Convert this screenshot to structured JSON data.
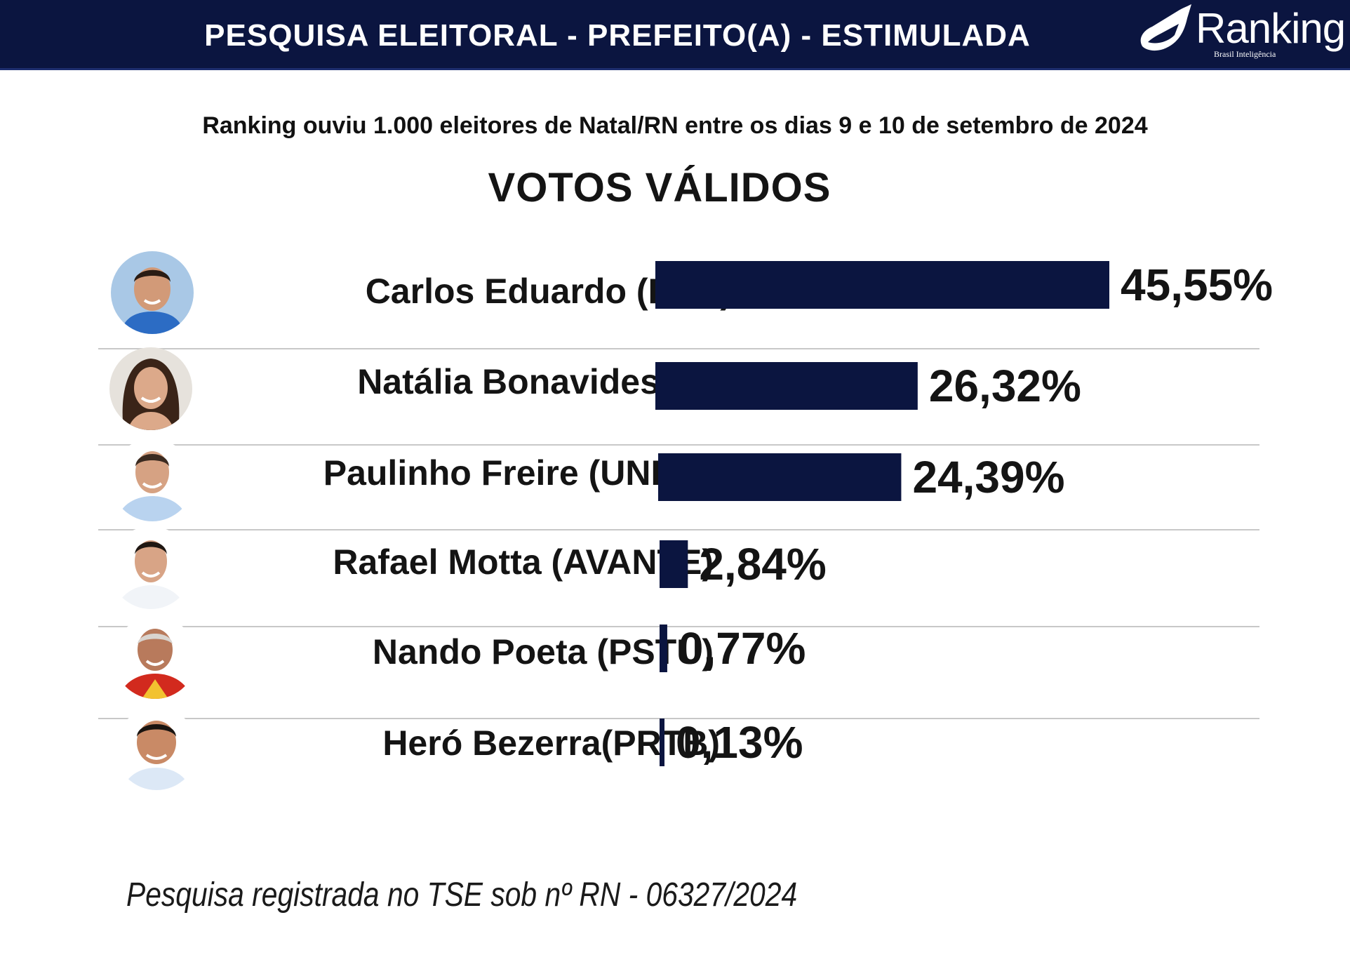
{
  "header": {
    "title": "PESQUISA ELEITORAL - PREFEITO(A) - ESTIMULADA",
    "logo_text": "Ranking",
    "logo_subtext": "Brasil Inteligência"
  },
  "subtitle": "Ranking ouviu 1.000 eleitores de Natal/RN entre os dias 9 e 10 de setembro  de 2024",
  "footer_note": "Pesquisa registrada no TSE sob nº RN - 06327/2024",
  "colors": {
    "bar": "#0b1540",
    "header_bg": "#0b1540",
    "text": "#141414"
  },
  "chart_data": {
    "type": "bar",
    "orientation": "horizontal",
    "title": "VOTOS VÁLIDOS",
    "categories": [
      "Carlos Eduardo (PSD)",
      "Natália Bonavides (PT)",
      "Paulinho Freire (UNIÃO)",
      "Rafael Motta (AVANTE)",
      "Nando Poeta (PSTU)",
      "Heró Bezerra(PRTB)"
    ],
    "values": [
      45.55,
      26.32,
      24.39,
      2.84,
      0.77,
      0.13
    ],
    "value_labels": [
      "45,55%",
      "26,32%",
      "24,39%",
      "2,84%",
      "0,77%",
      "0,13%"
    ],
    "grid": false,
    "legend": "none"
  }
}
